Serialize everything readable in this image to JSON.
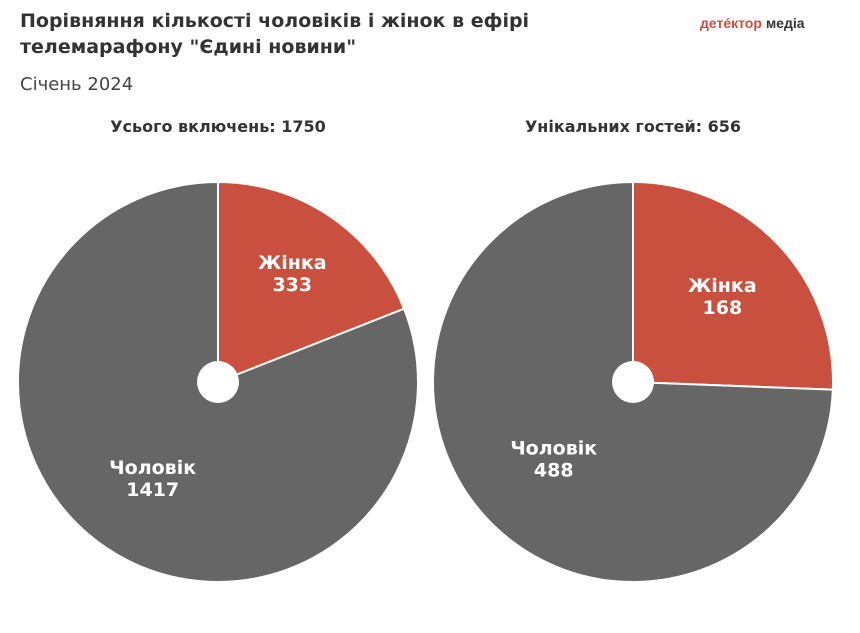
{
  "title": "Порівняння кількості чоловіків і жінок в ефірі телемарафону \"Єдині новини\"",
  "subtitle": "Січень 2024",
  "logo": {
    "part1": "детéктор",
    "part2": "медіа"
  },
  "colors": {
    "female": "#c9503e",
    "male": "#666666",
    "background": "#ffffff"
  },
  "chart_data": [
    {
      "type": "pie",
      "title": "Усього включень: 1750",
      "slices": [
        {
          "label": "Жінка",
          "value": 333,
          "color": "#c9503e"
        },
        {
          "label": "Чоловік",
          "value": 1417,
          "color": "#666666"
        }
      ]
    },
    {
      "type": "pie",
      "title": "Унікальних гостей: 656",
      "slices": [
        {
          "label": "Жінка",
          "value": 168,
          "color": "#c9503e"
        },
        {
          "label": "Чоловік",
          "value": 488,
          "color": "#666666"
        }
      ]
    }
  ]
}
